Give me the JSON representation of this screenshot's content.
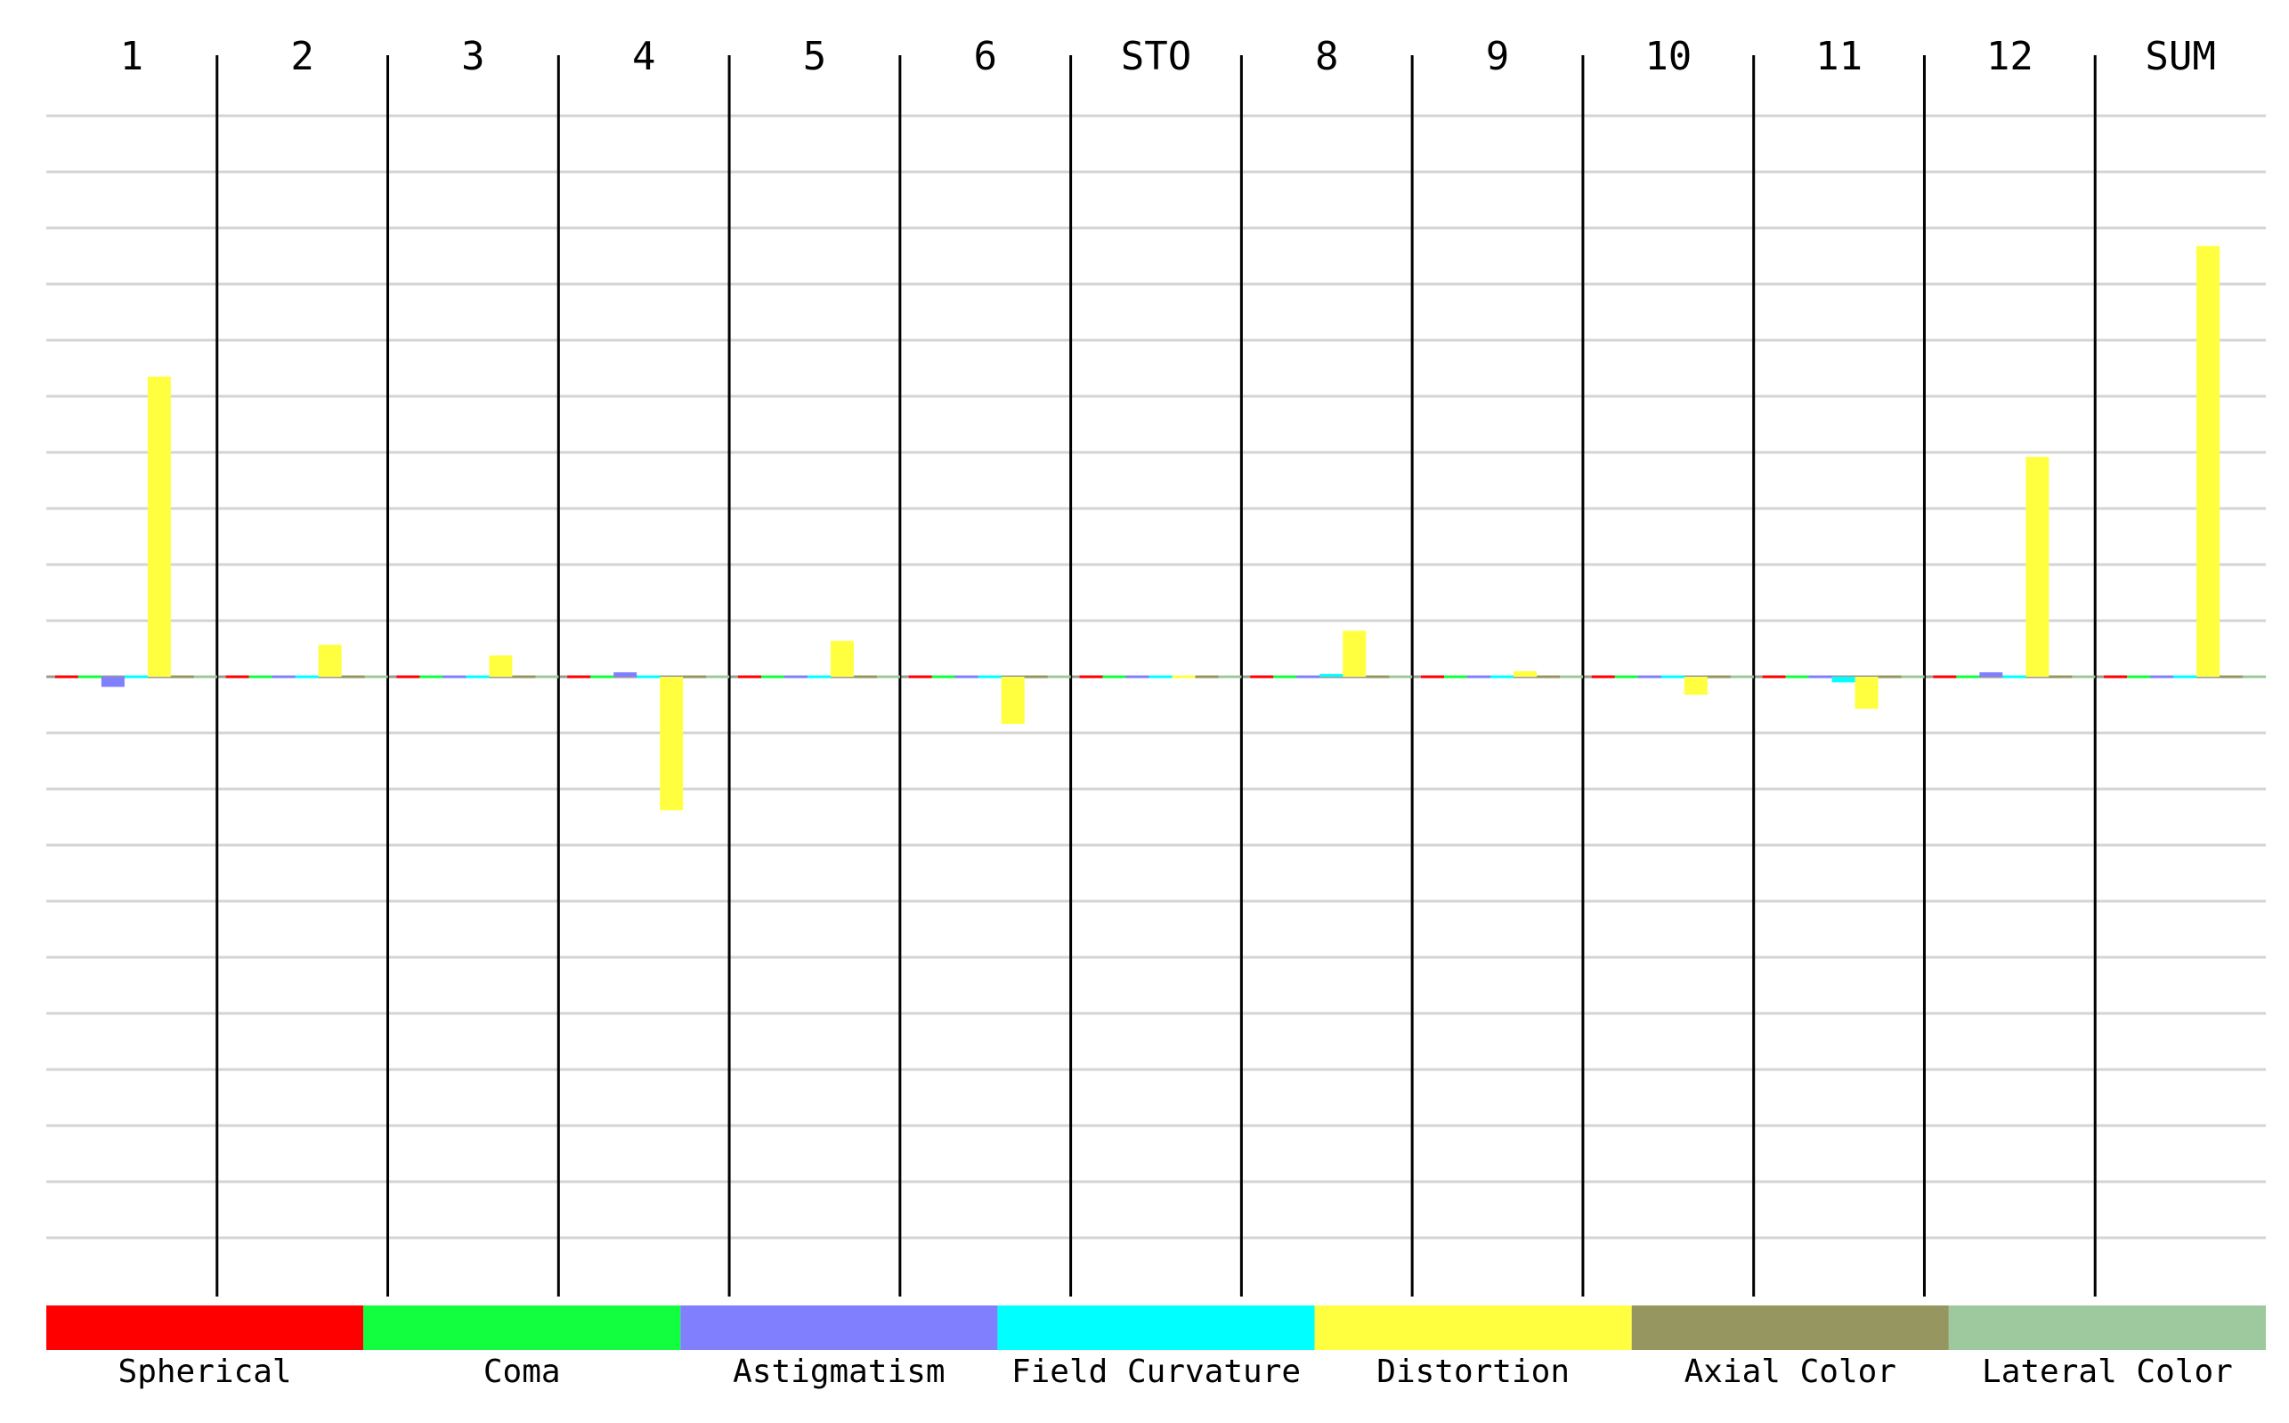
{
  "chart_data": {
    "type": "bar",
    "categories": [
      "1",
      "2",
      "3",
      "4",
      "5",
      "6",
      "STO",
      "8",
      "9",
      "10",
      "11",
      "12",
      "SUM"
    ],
    "ylim": [
      -11,
      10
    ],
    "grid": true,
    "legend_position": "bottom",
    "series": [
      {
        "name": "Spherical",
        "color": "#ff0000",
        "values": [
          0.0,
          0.0,
          0.0,
          0.0,
          0.0,
          0.0,
          0.0,
          0.0,
          0.0,
          0.0,
          0.0,
          0.0,
          0.0
        ]
      },
      {
        "name": "Coma",
        "color": "#11ff3f",
        "values": [
          0.0,
          0.0,
          0.0,
          0.0,
          0.0,
          0.0,
          0.0,
          0.0,
          0.0,
          0.0,
          0.0,
          0.0,
          0.0
        ]
      },
      {
        "name": "Astigmatism",
        "color": "#8080ff",
        "values": [
          -0.18,
          -0.02,
          0.0,
          0.08,
          0.0,
          -0.01,
          0.0,
          0.02,
          0.0,
          0.0,
          0.0,
          0.08,
          -0.02
        ]
      },
      {
        "name": "Field Curvature",
        "color": "#00ffff",
        "values": [
          0.0,
          -0.02,
          -0.01,
          0.02,
          0.02,
          -0.02,
          0.0,
          0.05,
          -0.02,
          0.04,
          -0.1,
          0.02,
          0.03
        ]
      },
      {
        "name": "Distortion",
        "color": "#ffff3f",
        "values": [
          5.35,
          0.57,
          0.38,
          -2.38,
          0.64,
          -0.84,
          0.0,
          0.82,
          0.1,
          -0.32,
          -0.57,
          3.92,
          7.68
        ]
      },
      {
        "name": "Axial Color",
        "color": "#969660",
        "values": [
          0.0,
          0.0,
          0.0,
          0.0,
          0.0,
          0.0,
          0.0,
          0.0,
          0.0,
          0.0,
          0.0,
          0.0,
          0.0
        ]
      },
      {
        "name": "Lateral Color",
        "color": "#9ec89e",
        "values": [
          0.0,
          0.0,
          0.0,
          0.0,
          0.0,
          0.0,
          0.0,
          0.0,
          0.0,
          0.0,
          0.0,
          0.0,
          0.0
        ]
      }
    ]
  }
}
